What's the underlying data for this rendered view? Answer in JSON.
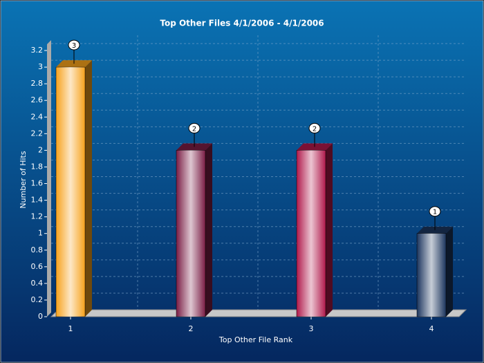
{
  "chart_data": {
    "type": "bar",
    "title": "Top Other Files 4/1/2006 - 4/1/2006",
    "x_label": "Top Other File Rank",
    "y_label": "Number of Hits",
    "categories": [
      "1",
      "2",
      "3",
      "4"
    ],
    "values": [
      3,
      2,
      2,
      1
    ],
    "colors": [
      "#f7a21c",
      "#7a1d45",
      "#b0194b",
      "#1c355e"
    ],
    "ylim": [
      0,
      3.3
    ],
    "yticks": [
      0,
      0.2,
      0.4,
      0.6,
      0.8,
      1,
      1.2,
      1.4,
      1.6,
      1.8,
      2,
      2.2,
      2.4,
      2.6,
      2.8,
      3,
      3.2
    ],
    "grid": true
  }
}
